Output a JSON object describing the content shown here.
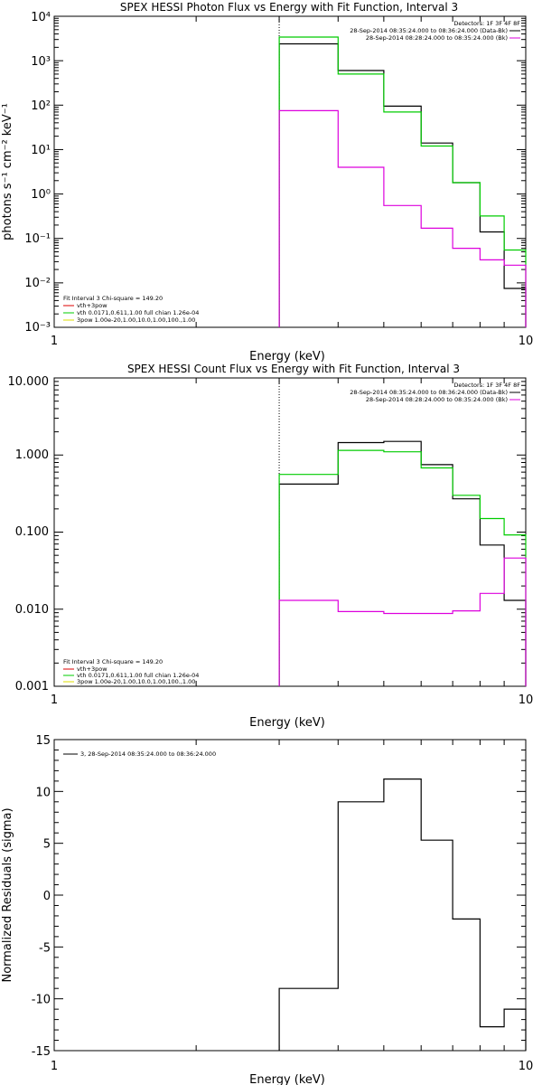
{
  "chart_data": [
    {
      "type": "line",
      "title": "SPEX HESSI Photon Flux vs Energy with Fit Function, Interval 3",
      "xlabel": "Energy (keV)",
      "ylabel": "photons s⁻¹ cm⁻² keV⁻¹",
      "xscale": "log",
      "yscale": "log",
      "xlim": [
        1,
        10
      ],
      "ylim": [
        0.001,
        10000
      ],
      "x_ticks": [
        {
          "value": 1,
          "label": "1"
        },
        {
          "value": 10,
          "label": "10"
        }
      ],
      "y_ticks": [
        {
          "value": 0.001,
          "label": "10⁻³"
        },
        {
          "value": 0.01,
          "label": "10⁻²"
        },
        {
          "value": 0.1,
          "label": "10⁻¹"
        },
        {
          "value": 1,
          "label": "10⁰"
        },
        {
          "value": 10,
          "label": "10¹"
        },
        {
          "value": 100,
          "label": "10²"
        },
        {
          "value": 1000,
          "label": "10³"
        },
        {
          "value": 10000,
          "label": "10⁴"
        }
      ],
      "marker_line_x": 3.0,
      "bin_edges": [
        3.0,
        4.0,
        5.0,
        6.0,
        7.0,
        8.0,
        9.0,
        10.0
      ],
      "series": [
        {
          "color": "#000000",
          "values": [
            2400,
            600,
            95,
            14,
            1.8,
            0.14,
            0.0075
          ]
        },
        {
          "color": "#00cc00",
          "values": [
            3400,
            500,
            70,
            12,
            1.8,
            0.32,
            0.055
          ]
        },
        {
          "color": "#dd00dd",
          "values": [
            75,
            4,
            0.55,
            0.17,
            0.06,
            0.033,
            0.025
          ]
        }
      ],
      "legend_top": {
        "header": "Detectors: 1F 3F 4F 8F",
        "entries": [
          {
            "label": "28-Sep-2014 08:35:24.000 to 08:36:24.000 (Data-Bk)",
            "color": "#000000"
          },
          {
            "label": "28-Sep-2014 08:28:24.000 to 08:35:24.000 (Bk)",
            "color": "#dd00dd"
          }
        ]
      },
      "legend_bottom": {
        "header": "Fit Interval 3   Chi-square = 149.20",
        "entries": [
          {
            "label": "vth+3pow",
            "color": "#dd0000"
          },
          {
            "label": "vth 0.0171,0.611,1.00  full chian 1.26e-04",
            "color": "#00cc00"
          },
          {
            "label": "3pow 1.00e-20,1.00,10.0,1.00,100.,1.00",
            "color": "#dddd00"
          }
        ]
      }
    },
    {
      "type": "line",
      "title": "SPEX HESSI Count Flux vs Energy with Fit Function, Interval 3",
      "xlabel": "Energy (keV)",
      "ylabel": "",
      "xscale": "log",
      "yscale": "log",
      "xlim": [
        1,
        10
      ],
      "ylim": [
        0.001,
        10
      ],
      "x_ticks": [
        {
          "value": 1,
          "label": "1"
        },
        {
          "value": 10,
          "label": "10"
        }
      ],
      "y_ticks": [
        {
          "value": 0.001,
          "label": "0.001"
        },
        {
          "value": 0.01,
          "label": "0.010"
        },
        {
          "value": 0.1,
          "label": "0.100"
        },
        {
          "value": 1,
          "label": "1.000"
        },
        {
          "value": 10,
          "label": "10.000"
        }
      ],
      "marker_line_x": 3.0,
      "bin_edges": [
        3.0,
        4.0,
        5.0,
        6.0,
        7.0,
        8.0,
        9.0,
        10.0
      ],
      "series": [
        {
          "color": "#000000",
          "values": [
            0.42,
            1.45,
            1.5,
            0.75,
            0.27,
            0.068,
            0.013
          ]
        },
        {
          "color": "#00cc00",
          "values": [
            0.56,
            1.15,
            1.1,
            0.68,
            0.3,
            0.15,
            0.092
          ]
        },
        {
          "color": "#dd00dd",
          "values": [
            0.013,
            0.0093,
            0.0088,
            0.0088,
            0.0095,
            0.016,
            0.046
          ]
        }
      ],
      "legend_top": {
        "header": "Detectors: 1F 3F 4F 8F",
        "entries": [
          {
            "label": "28-Sep-2014 08:35:24.000 to 08:36:24.000 (Data-Bk)",
            "color": "#000000"
          },
          {
            "label": "28-Sep-2014 08:28:24.000 to 08:35:24.000 (Bk)",
            "color": "#dd00dd"
          }
        ]
      },
      "legend_bottom": {
        "header": "Fit Interval 3   Chi-square = 149.20",
        "entries": [
          {
            "label": "vth+3pow",
            "color": "#dd0000"
          },
          {
            "label": "vth 0.0171,0.611,1.00  full chian 1.26e-04",
            "color": "#00cc00"
          },
          {
            "label": "3pow 1.00e-20,1.00,10.0,1.00,100.,1.00",
            "color": "#dddd00"
          }
        ]
      }
    },
    {
      "type": "line",
      "title": "",
      "xlabel": "Energy (keV)",
      "ylabel": "Normalized Residuals (sigma)",
      "xscale": "log",
      "yscale": "linear",
      "xlim": [
        1,
        10
      ],
      "ylim": [
        -15,
        15
      ],
      "x_ticks": [
        {
          "value": 1,
          "label": "1"
        },
        {
          "value": 10,
          "label": "10"
        }
      ],
      "y_ticks": [
        {
          "value": -15,
          "label": "-15"
        },
        {
          "value": -10,
          "label": "-10"
        },
        {
          "value": -5,
          "label": "-5"
        },
        {
          "value": 0,
          "label": "0"
        },
        {
          "value": 5,
          "label": "5"
        },
        {
          "value": 10,
          "label": "10"
        },
        {
          "value": 15,
          "label": "15"
        }
      ],
      "bin_edges": [
        3.0,
        4.0,
        5.0,
        6.0,
        7.0,
        8.0,
        9.0,
        10.0
      ],
      "series": [
        {
          "color": "#000000",
          "values": [
            -9,
            9,
            11.2,
            5.3,
            -2.3,
            -12.7,
            -11
          ]
        }
      ],
      "legend_top": {
        "header": "",
        "entries": [
          {
            "label": "3, 28-Sep-2014 08:35:24.000 to 08:36:24.000",
            "color": "#000000"
          }
        ]
      }
    }
  ]
}
